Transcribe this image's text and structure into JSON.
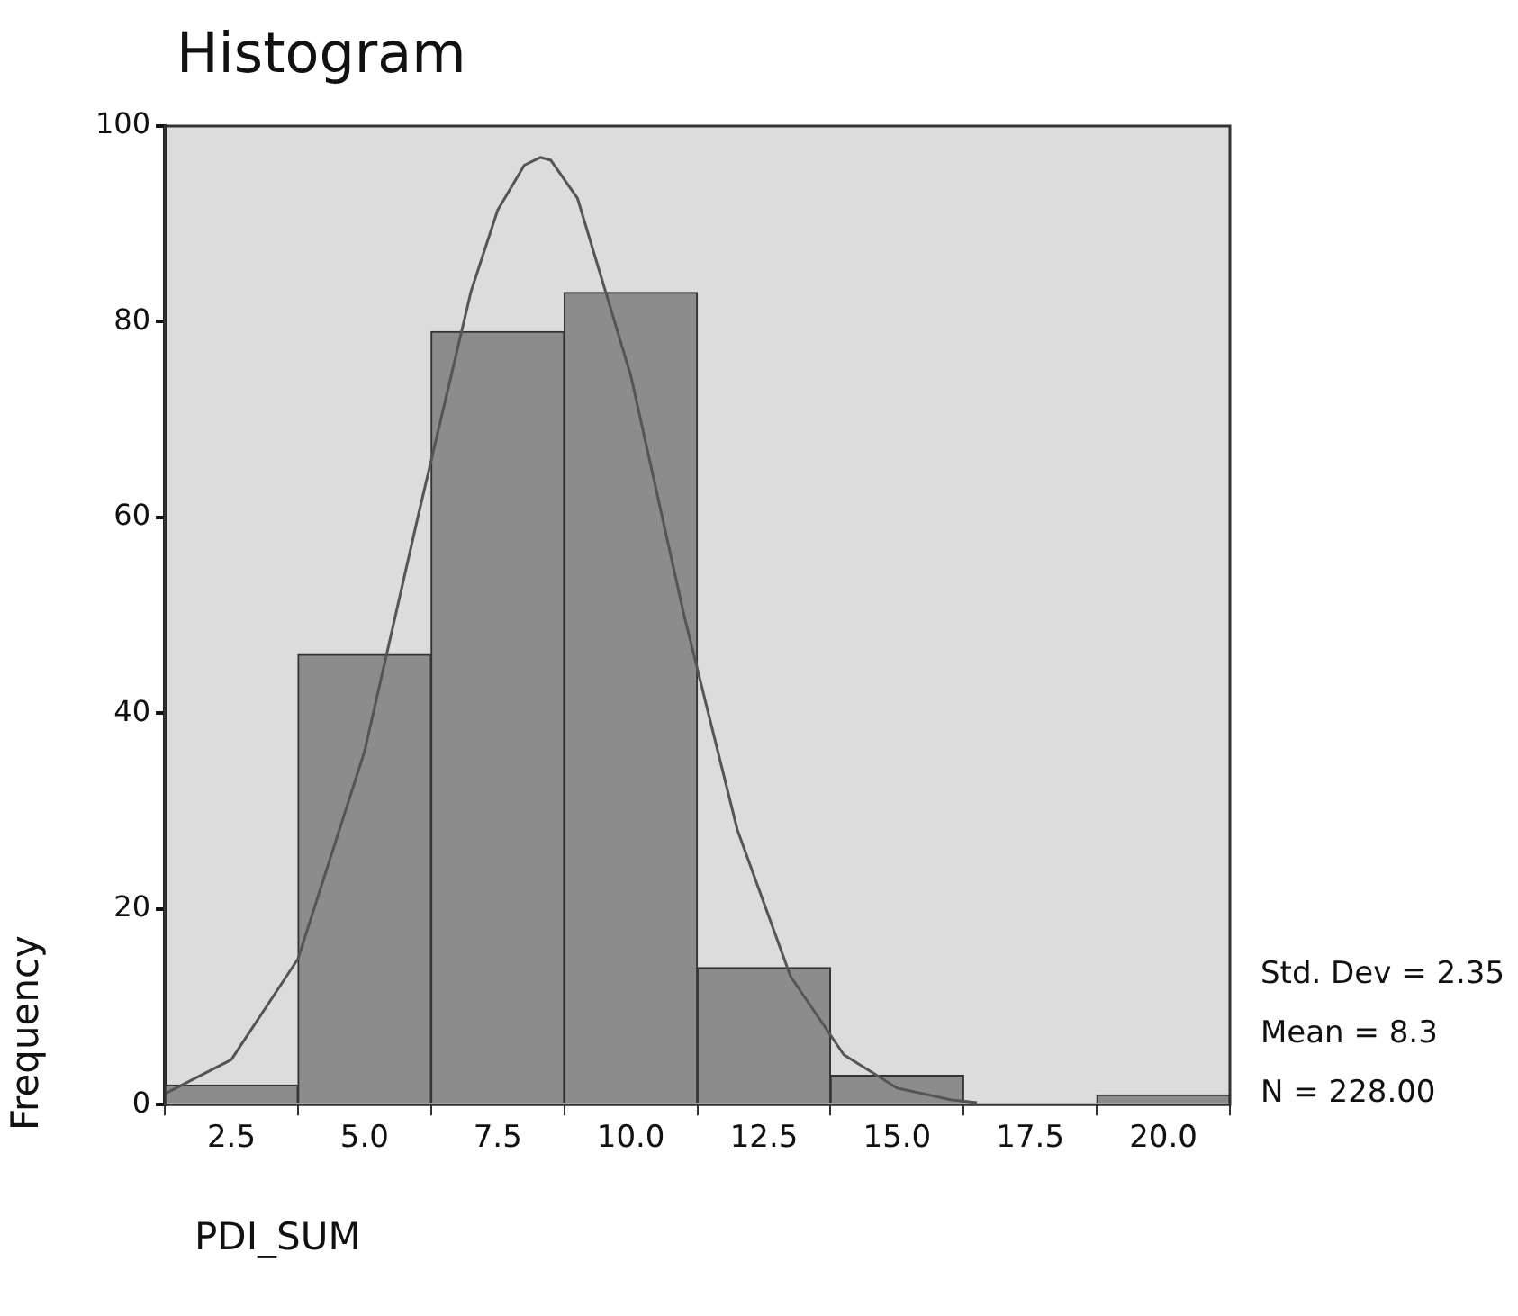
{
  "chart_data": {
    "type": "histogram",
    "title": "Histogram",
    "xlabel": "PDI_SUM",
    "ylabel": "Frequency",
    "bins": [
      1.25,
      3.75,
      6.25,
      8.75,
      11.25,
      13.75,
      16.25,
      18.75,
      21.25
    ],
    "values": [
      2,
      46,
      79,
      83,
      14,
      3,
      0,
      1
    ],
    "color": "#8c8c8c",
    "series": [
      {
        "type": "line",
        "color": "#555555",
        "x": [
          1.25,
          2.5,
          3.75,
          5,
          6,
          7,
          7.5,
          8,
          8.3,
          8.5,
          9,
          10,
          11,
          12,
          13,
          14,
          15,
          16,
          16.5
        ],
        "values": [
          1.1,
          4.6,
          14.9,
          36.1,
          60.0,
          83.1,
          91.4,
          96.0,
          96.8,
          96.5,
          92.6,
          74.5,
          50.0,
          28.1,
          13.1,
          5.1,
          1.7,
          0.5,
          0.2
        ]
      }
    ],
    "xlim": [
      1.25,
      21.25
    ],
    "xticks": [
      2.5,
      {
        "value": 5,
        "label": "5.0"
      },
      7.5,
      {
        "value": 10,
        "label": "10.0"
      },
      12.5,
      {
        "value": 15,
        "label": "15.0"
      },
      17.5,
      {
        "value": 20,
        "label": "20.0"
      }
    ],
    "ylim": [
      0,
      100
    ],
    "yticks": [
      0,
      20,
      40,
      60,
      80,
      100
    ],
    "grid": false,
    "legend": false,
    "marker": "none",
    "line_style": "solid",
    "annotations": [
      "Std. Dev = 2.35",
      "Mean = 8.3",
      "N = 228.00"
    ]
  }
}
